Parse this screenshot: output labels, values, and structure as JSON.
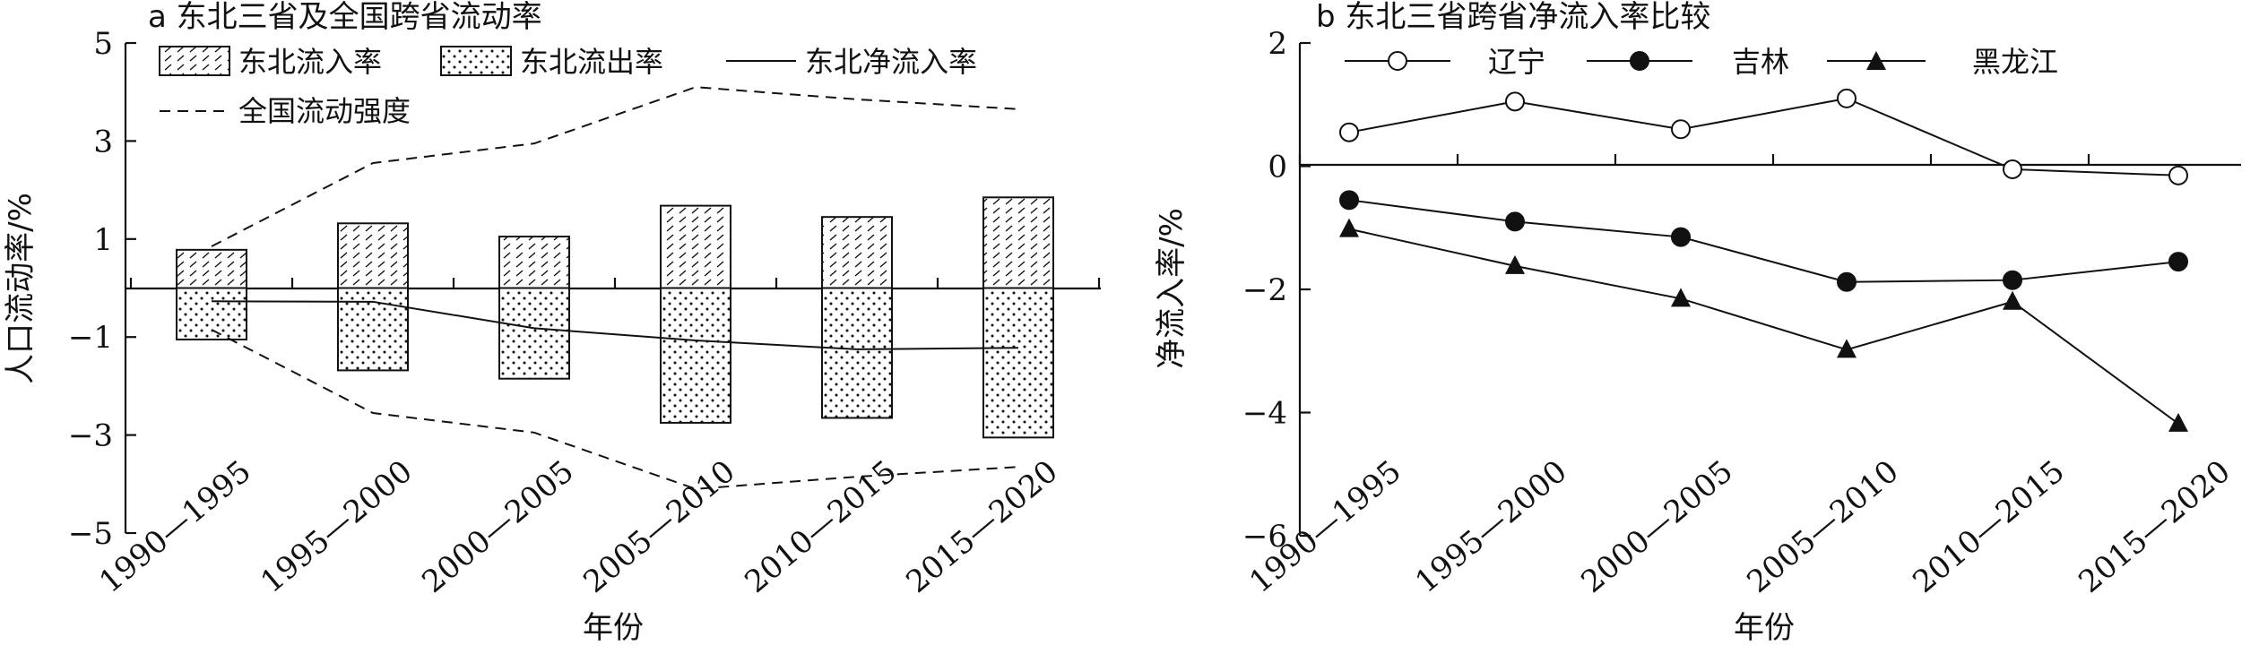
{
  "chart_data": [
    {
      "type": "bar",
      "title": "a 东北三省及全国跨省流动率",
      "xlabel": "年份",
      "ylabel": "人口流动率/%",
      "ylim": [
        -5,
        5
      ],
      "yticks": [
        "5",
        "3",
        "1",
        "−1",
        "−3",
        "−5"
      ],
      "categories": [
        "1990—1995",
        "1995—2000",
        "2000—2005",
        "2005—2010",
        "2010—2015",
        "2015—2020"
      ],
      "series": [
        {
          "name": "东北流入率",
          "kind": "bar",
          "pattern": "hatch",
          "values": [
            0.78,
            1.32,
            1.05,
            1.68,
            1.45,
            1.85
          ]
        },
        {
          "name": "东北流出率",
          "kind": "bar",
          "pattern": "dots",
          "values": [
            -1.05,
            -1.68,
            -1.85,
            -2.75,
            -2.65,
            -3.05
          ]
        },
        {
          "name": "东北净流入率",
          "kind": "line",
          "style": "solid",
          "values": [
            -0.27,
            -0.28,
            -0.82,
            -1.07,
            -1.25,
            -1.22
          ]
        },
        {
          "name": "全国流动强度",
          "kind": "line",
          "style": "dashed",
          "values": [
            0.85,
            2.55,
            2.95,
            4.1,
            3.85,
            3.65
          ]
        }
      ],
      "legend_position": "top-left",
      "grid": false
    },
    {
      "type": "line",
      "title": "b 东北三省跨省净流入率比较",
      "xlabel": "年份",
      "ylabel": "净流入率/%",
      "ylim": [
        -6,
        2
      ],
      "yticks": [
        "2",
        "0",
        "−2",
        "−4",
        "−6"
      ],
      "categories": [
        "1990—1995",
        "1995—2000",
        "2000—2005",
        "2005—2010",
        "2010—2015",
        "2015—2020"
      ],
      "series": [
        {
          "name": "辽宁",
          "marker": "open-circle",
          "values": [
            0.55,
            1.05,
            0.6,
            1.1,
            -0.05,
            -0.15
          ]
        },
        {
          "name": "吉林",
          "marker": "filled-circle",
          "values": [
            -0.55,
            -0.9,
            -1.15,
            -1.88,
            -1.85,
            -1.55
          ]
        },
        {
          "name": "黑龙江",
          "marker": "filled-triangle",
          "values": [
            -1.02,
            -1.62,
            -2.15,
            -2.98,
            -2.2,
            -4.18
          ]
        }
      ],
      "legend_position": "top",
      "grid": false
    }
  ]
}
